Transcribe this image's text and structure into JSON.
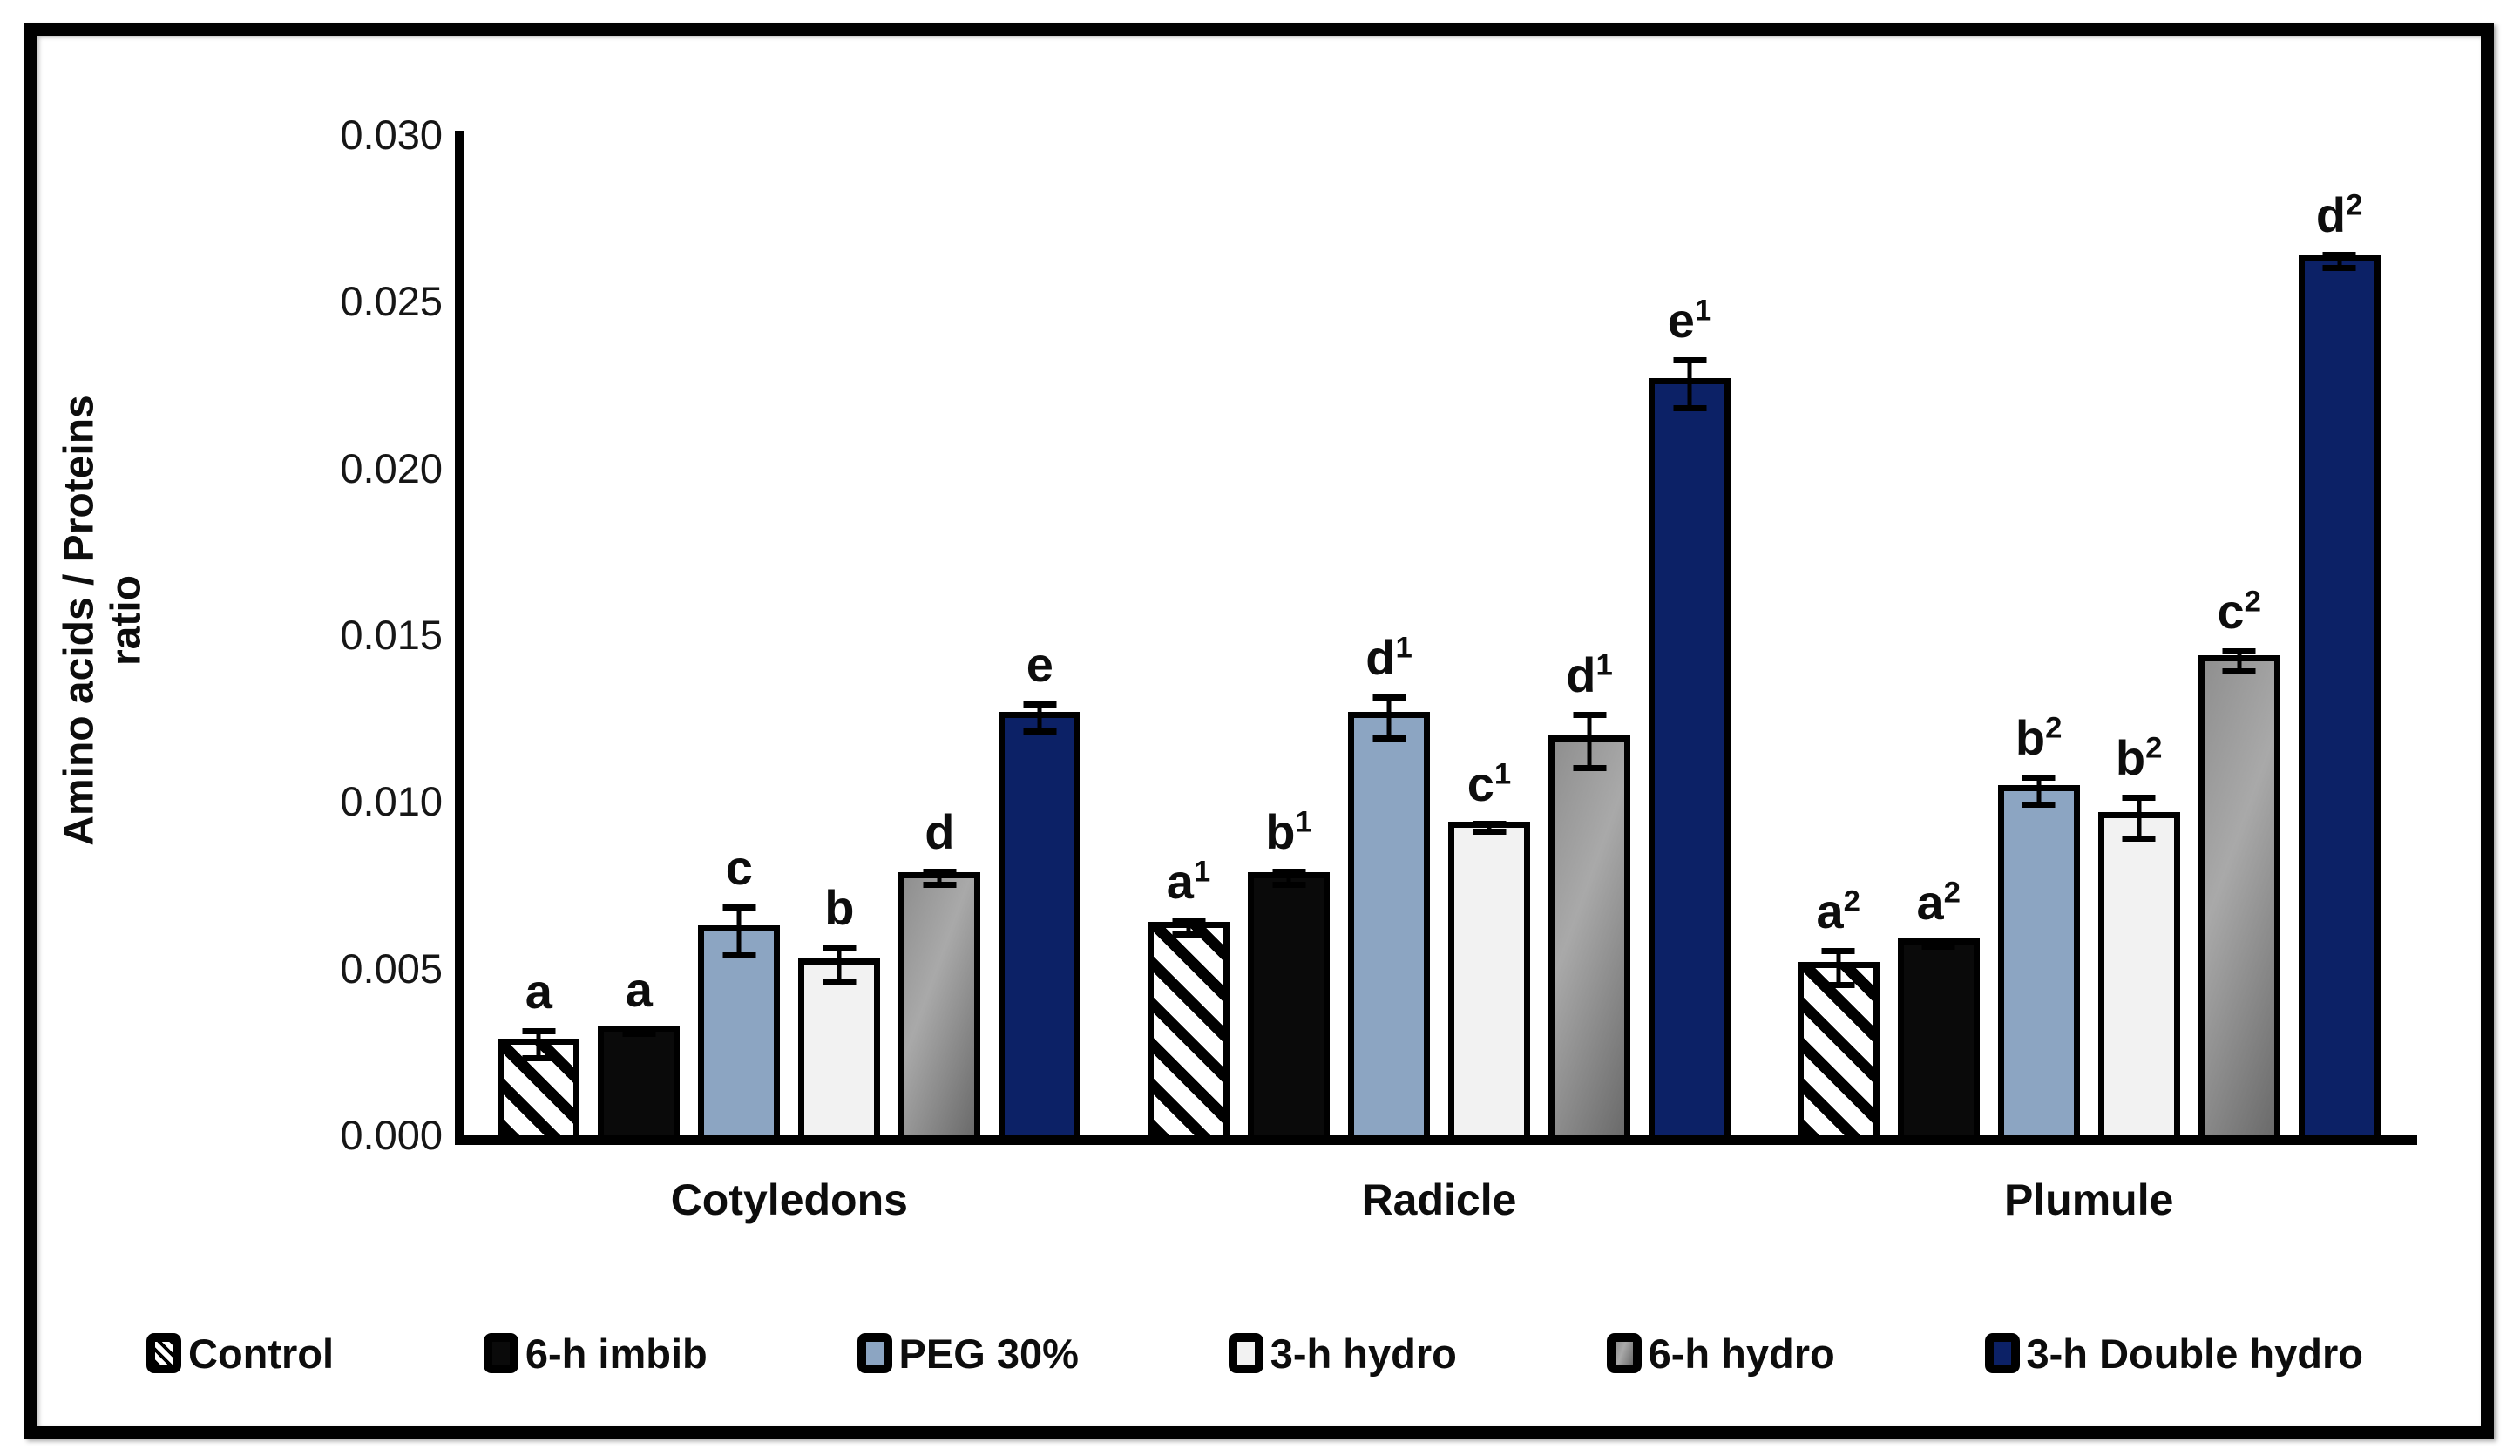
{
  "chart_data": {
    "type": "bar",
    "title": "",
    "ylabel": "Amino acids / Proteins ratio",
    "ylabel_lines": [
      "Amino acids / Proteins",
      "ratio"
    ],
    "yticks": [
      "0.030",
      "0.025",
      "0.020",
      "0.015",
      "0.010",
      "0.005",
      "0.000"
    ],
    "ylim": [
      0,
      0.03
    ],
    "grid": false,
    "legend_position": "bottom",
    "error_bars": true,
    "categories": [
      "Cotyledons",
      "Radicle",
      "Plumule"
    ],
    "series": [
      {
        "name": "Control",
        "pattern": "diagonal-hatch",
        "color": "#ffffff",
        "hatch_color": "#000000",
        "values": [
          0.0029,
          0.0064,
          0.0052
        ],
        "errors": [
          0.0005,
          0.0003,
          0.0006
        ],
        "letters": [
          {
            "t": "a",
            "s": ""
          },
          {
            "t": "a",
            "s": "1"
          },
          {
            "t": "a",
            "s": "2"
          }
        ]
      },
      {
        "name": "6-h imbib",
        "pattern": "solid",
        "color": "#0a0a0a",
        "values": [
          0.0033,
          0.0079,
          0.0059
        ],
        "errors": [
          0.00015,
          0.0003,
          0.00015
        ],
        "letters": [
          {
            "t": "a",
            "s": ""
          },
          {
            "t": "b",
            "s": "1"
          },
          {
            "t": "a",
            "s": "2"
          }
        ]
      },
      {
        "name": "PEG 30%",
        "pattern": "solid",
        "color": "#8ca5c2",
        "values": [
          0.0063,
          0.0127,
          0.0105
        ],
        "errors": [
          0.0008,
          0.0007,
          0.0005
        ],
        "letters": [
          {
            "t": "c",
            "s": ""
          },
          {
            "t": "d",
            "s": "1"
          },
          {
            "t": "b",
            "s": "2"
          }
        ]
      },
      {
        "name": "3-h hydro",
        "pattern": "solid",
        "color": "#f2f2f2",
        "values": [
          0.0053,
          0.0094,
          0.0097
        ],
        "errors": [
          0.0006,
          0.0002,
          0.0007
        ],
        "letters": [
          {
            "t": "b",
            "s": ""
          },
          {
            "t": "c",
            "s": "1"
          },
          {
            "t": "b",
            "s": "2"
          }
        ]
      },
      {
        "name": "6-h hydro",
        "pattern": "gradient",
        "color": "#8c8c8c",
        "values": [
          0.0079,
          0.012,
          0.0144
        ],
        "errors": [
          0.0003,
          0.0009,
          0.0004
        ],
        "letters": [
          {
            "t": "d",
            "s": ""
          },
          {
            "t": "d",
            "s": "1"
          },
          {
            "t": "c",
            "s": "2"
          }
        ]
      },
      {
        "name": "3-h Double hydro",
        "pattern": "solid",
        "color": "#0c2166",
        "values": [
          0.0127,
          0.0227,
          0.0264
        ],
        "errors": [
          0.0005,
          0.0008,
          0.0003
        ],
        "letters": [
          {
            "t": "e",
            "s": ""
          },
          {
            "t": "e",
            "s": "1"
          },
          {
            "t": "d",
            "s": "2"
          }
        ]
      }
    ]
  }
}
